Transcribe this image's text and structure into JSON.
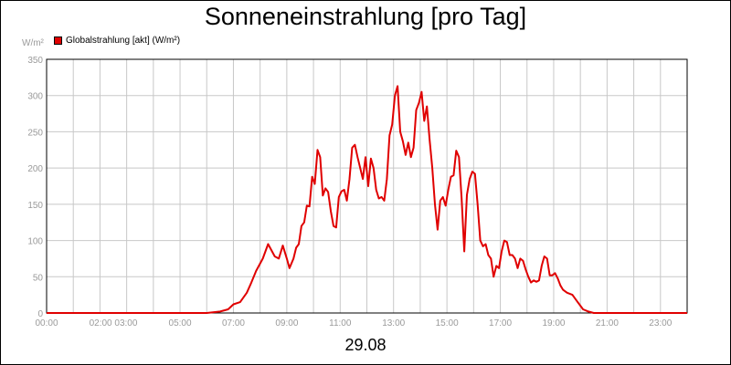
{
  "chart_data": {
    "type": "line",
    "title": "Sonneneinstrahlung [pro Tag]",
    "ylabel": "W/m²",
    "xlabel": "29.08",
    "x_tick_labels": [
      "00:00",
      "02:00 03:00",
      "05:00",
      "07:00",
      "09:00",
      "11:00",
      "13:00",
      "15:00",
      "17:00",
      "19:00",
      "21:00",
      "23:00"
    ],
    "x_tick_hours": [
      0,
      2.5,
      5,
      7,
      9,
      11,
      13,
      15,
      17,
      19,
      21,
      23
    ],
    "y_ticks": [
      0,
      50,
      100,
      150,
      200,
      250,
      300,
      350
    ],
    "xlim": [
      0,
      24
    ],
    "ylim": [
      0,
      350
    ],
    "grid": true,
    "legend_position": "top-left",
    "colors": {
      "series": "#e00000",
      "grid": "#c8c8c8",
      "axis": "#000000",
      "tick_text": "#9a9a9a"
    },
    "series": [
      {
        "name": "Globalstrahlung [akt] (W/m²)",
        "x": [
          0,
          6,
          6.5,
          6.8,
          7,
          7.25,
          7.5,
          7.65,
          7.85,
          8.1,
          8.3,
          8.55,
          8.7,
          8.85,
          9.0,
          9.1,
          9.25,
          9.35,
          9.45,
          9.55,
          9.65,
          9.75,
          9.85,
          9.95,
          10.05,
          10.15,
          10.25,
          10.35,
          10.45,
          10.55,
          10.65,
          10.75,
          10.85,
          10.95,
          11.05,
          11.15,
          11.25,
          11.35,
          11.45,
          11.55,
          11.65,
          11.75,
          11.85,
          11.95,
          12.05,
          12.15,
          12.25,
          12.35,
          12.45,
          12.55,
          12.65,
          12.75,
          12.85,
          12.95,
          13.05,
          13.15,
          13.25,
          13.35,
          13.45,
          13.55,
          13.65,
          13.75,
          13.85,
          13.95,
          14.05,
          14.15,
          14.25,
          14.35,
          14.45,
          14.55,
          14.65,
          14.75,
          14.85,
          14.95,
          15.05,
          15.15,
          15.25,
          15.35,
          15.45,
          15.55,
          15.65,
          15.75,
          15.85,
          15.95,
          16.05,
          16.15,
          16.25,
          16.35,
          16.45,
          16.55,
          16.65,
          16.75,
          16.85,
          16.95,
          17.05,
          17.15,
          17.25,
          17.35,
          17.45,
          17.55,
          17.65,
          17.75,
          17.85,
          17.95,
          18.05,
          18.15,
          18.25,
          18.35,
          18.45,
          18.55,
          18.65,
          18.75,
          18.85,
          18.95,
          19.05,
          19.15,
          19.25,
          19.35,
          19.5,
          19.7,
          19.9,
          20.1,
          20.3,
          20.5,
          24
        ],
        "y": [
          0,
          0,
          2,
          5,
          12,
          15,
          28,
          40,
          58,
          75,
          95,
          78,
          75,
          93,
          75,
          62,
          75,
          90,
          95,
          120,
          125,
          148,
          147,
          188,
          178,
          225,
          215,
          162,
          172,
          167,
          140,
          120,
          118,
          160,
          168,
          170,
          155,
          185,
          228,
          232,
          215,
          200,
          185,
          215,
          175,
          213,
          200,
          170,
          158,
          160,
          155,
          185,
          245,
          260,
          300,
          313,
          250,
          237,
          218,
          235,
          215,
          228,
          280,
          290,
          305,
          265,
          285,
          240,
          200,
          150,
          115,
          155,
          160,
          148,
          170,
          188,
          190,
          224,
          215,
          158,
          85,
          163,
          185,
          195,
          192,
          150,
          100,
          92,
          95,
          80,
          75,
          50,
          65,
          62,
          85,
          100,
          98,
          80,
          80,
          75,
          62,
          75,
          72,
          60,
          50,
          42,
          45,
          43,
          45,
          65,
          78,
          75,
          52,
          52,
          55,
          48,
          38,
          32,
          28,
          25,
          15,
          5,
          2,
          0,
          0
        ]
      }
    ]
  }
}
